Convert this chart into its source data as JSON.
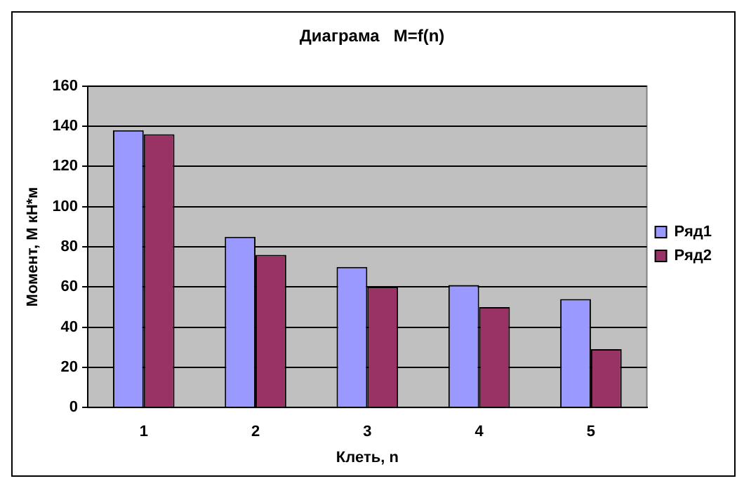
{
  "chart_data": {
    "type": "bar",
    "title": "Диаграма   M=f(n)",
    "xlabel": "Клеть, n",
    "ylabel": "Момент, М кН*м",
    "categories": [
      "1",
      "2",
      "3",
      "4",
      "5"
    ],
    "series": [
      {
        "name": "Ряд1",
        "color": "#9999ff",
        "values": [
          138,
          85,
          70,
          61,
          54
        ]
      },
      {
        "name": "Ряд2",
        "color": "#993366",
        "values": [
          136,
          76,
          60,
          50,
          29
        ]
      }
    ],
    "ylim": [
      0,
      160
    ],
    "yticks": [
      0,
      20,
      40,
      60,
      80,
      100,
      120,
      140,
      160
    ],
    "grid": "y",
    "legend": "right"
  }
}
